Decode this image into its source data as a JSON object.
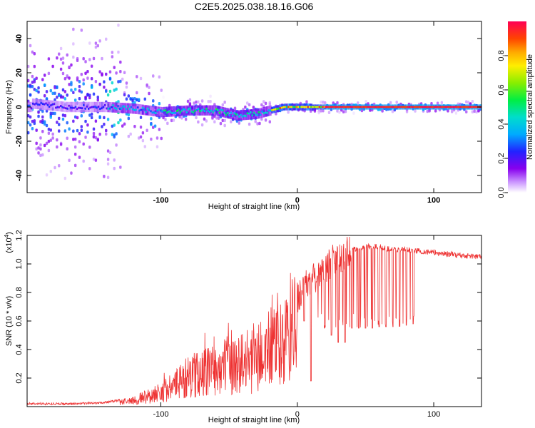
{
  "title": "C2E5.2025.038.18.16.G06",
  "chart_data": [
    {
      "type": "heatmap",
      "xlabel": "Height of straight line (km)",
      "ylabel": "Frequency (Hz)",
      "xlim": [
        -198,
        135
      ],
      "ylim": [
        -50,
        50
      ],
      "xticks": [
        -100,
        0,
        100
      ],
      "xtick_labels": [
        "-100",
        "0",
        "100"
      ],
      "yticks": [
        -40,
        -20,
        0,
        20,
        40
      ],
      "ytick_labels": [
        "-40",
        "-20",
        "0",
        "20",
        "40"
      ],
      "colorbar": {
        "label": "Normalized spectral amplitude",
        "range": [
          0,
          1
        ],
        "ticks": [
          0,
          0.2,
          0.4,
          0.6,
          0.8
        ],
        "tick_labels": [
          "0.0",
          "0.2",
          "0.4",
          "0.6",
          "0.8"
        ]
      },
      "ridge": [
        {
          "x": -195,
          "f": 2
        },
        {
          "x": -170,
          "f": 0
        },
        {
          "x": -140,
          "f": 0
        },
        {
          "x": -120,
          "f": -1
        },
        {
          "x": -100,
          "f": -3
        },
        {
          "x": -80,
          "f": -2
        },
        {
          "x": -60,
          "f": -2
        },
        {
          "x": -45,
          "f": -5
        },
        {
          "x": -30,
          "f": -4
        },
        {
          "x": -20,
          "f": -2
        },
        {
          "x": -10,
          "f": 0
        },
        {
          "x": 0,
          "f": 0
        },
        {
          "x": 20,
          "f": 0
        },
        {
          "x": 60,
          "f": 0
        },
        {
          "x": 100,
          "f": 0
        },
        {
          "x": 135,
          "f": 0
        }
      ],
      "grid": false
    },
    {
      "type": "line",
      "xlabel": "Height of straight line (km)",
      "ylabel": "SNR (10 * v/v)",
      "y_multiplier_label": "(x10",
      "y_multiplier_exp": "4",
      "y_multiplier_close": ")",
      "xlim": [
        -198,
        135
      ],
      "ylim": [
        0,
        1.2
      ],
      "xticks": [
        -100,
        0,
        100
      ],
      "xtick_labels": [
        "-100",
        "0",
        "100"
      ],
      "yticks": [
        0.2,
        0.4,
        0.6,
        0.8,
        1.0,
        1.2
      ],
      "ytick_labels": [
        "0.2",
        "0.4",
        "0.6",
        "0.8",
        "1.0",
        "1.2"
      ],
      "color": "#ee3333",
      "series": [
        {
          "envelope_x": [
            -198,
            -160,
            -140,
            -120,
            -110,
            -100,
            -90,
            -80,
            -70,
            -60,
            -50,
            -40,
            -30,
            -25,
            -20,
            -15,
            -10,
            -5,
            0,
            10,
            20,
            30,
            40,
            50,
            60,
            70,
            80,
            90,
            100,
            110,
            120,
            135
          ],
          "envelope_y": [
            0.02,
            0.02,
            0.03,
            0.06,
            0.1,
            0.14,
            0.2,
            0.28,
            0.33,
            0.36,
            0.4,
            0.42,
            0.45,
            0.5,
            0.57,
            0.55,
            0.6,
            0.7,
            0.77,
            0.88,
            0.97,
            1.05,
            1.1,
            1.12,
            1.12,
            1.1,
            1.1,
            1.09,
            1.08,
            1.07,
            1.06,
            1.05
          ],
          "spike_dips": [
            {
              "x": 5,
              "y": 0.6
            },
            {
              "x": 10,
              "y": 0.18
            },
            {
              "x": 20,
              "y": 0.55
            },
            {
              "x": 25,
              "y": 0.5
            },
            {
              "x": 30,
              "y": 0.45
            },
            {
              "x": 35,
              "y": 0.45
            },
            {
              "x": 40,
              "y": 0.55
            },
            {
              "x": 45,
              "y": 0.55
            },
            {
              "x": 50,
              "y": 0.55
            },
            {
              "x": 55,
              "y": 0.55
            },
            {
              "x": 60,
              "y": 0.56
            },
            {
              "x": 65,
              "y": 0.56
            },
            {
              "x": 70,
              "y": 0.56
            },
            {
              "x": 75,
              "y": 0.56
            },
            {
              "x": 80,
              "y": 0.57
            },
            {
              "x": 85,
              "y": 0.58
            }
          ]
        }
      ],
      "grid": false
    }
  ]
}
